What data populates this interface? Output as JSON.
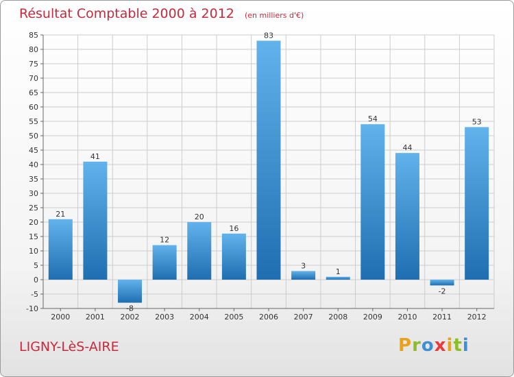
{
  "header": {
    "title": "Résultat Comptable 2000 à 2012",
    "subtitle": "(en milliers d'€)"
  },
  "footer": {
    "commune": "LIGNY-LèS-AIRE",
    "logo": "Proxiti"
  },
  "colors": {
    "bar_top": "#62b2ec",
    "bar_bottom": "#1f6eb0",
    "title": "#c8283a",
    "grid": "#cccccc",
    "logo_letters": [
      "#e8a21c",
      "#8cbf26",
      "#3d8fd6",
      "#e83a3a",
      "#e8a21c",
      "#8cbf26",
      "#3d8fd6"
    ]
  },
  "chart_data": {
    "type": "bar",
    "title": "Résultat Comptable 2000 à 2012",
    "subtitle": "(en milliers d'€)",
    "categories": [
      "2000",
      "2001",
      "2002",
      "2003",
      "2004",
      "2005",
      "2006",
      "2007",
      "2008",
      "2009",
      "2010",
      "2011",
      "2012"
    ],
    "values": [
      21,
      41,
      -8,
      12,
      20,
      16,
      83,
      3,
      1,
      54,
      44,
      -2,
      53
    ],
    "value_labels": [
      "21",
      "41",
      "-8",
      "12",
      "20",
      "16",
      "83",
      "3",
      "1",
      "54",
      "44",
      "-2",
      "53"
    ],
    "ylim": [
      -10,
      85
    ],
    "yticks": [
      -10,
      -5,
      0,
      5,
      10,
      15,
      20,
      25,
      30,
      35,
      40,
      45,
      50,
      55,
      60,
      65,
      70,
      75,
      80,
      85
    ],
    "ytick_labels": [
      "-10",
      "-5",
      "0",
      "5",
      "10",
      "15",
      "20",
      "25",
      "30",
      "35",
      "40",
      "45",
      "50",
      "55",
      "60",
      "65",
      "70",
      "75",
      "80",
      "85"
    ],
    "grid": true,
    "xlabel": "",
    "ylabel": ""
  }
}
